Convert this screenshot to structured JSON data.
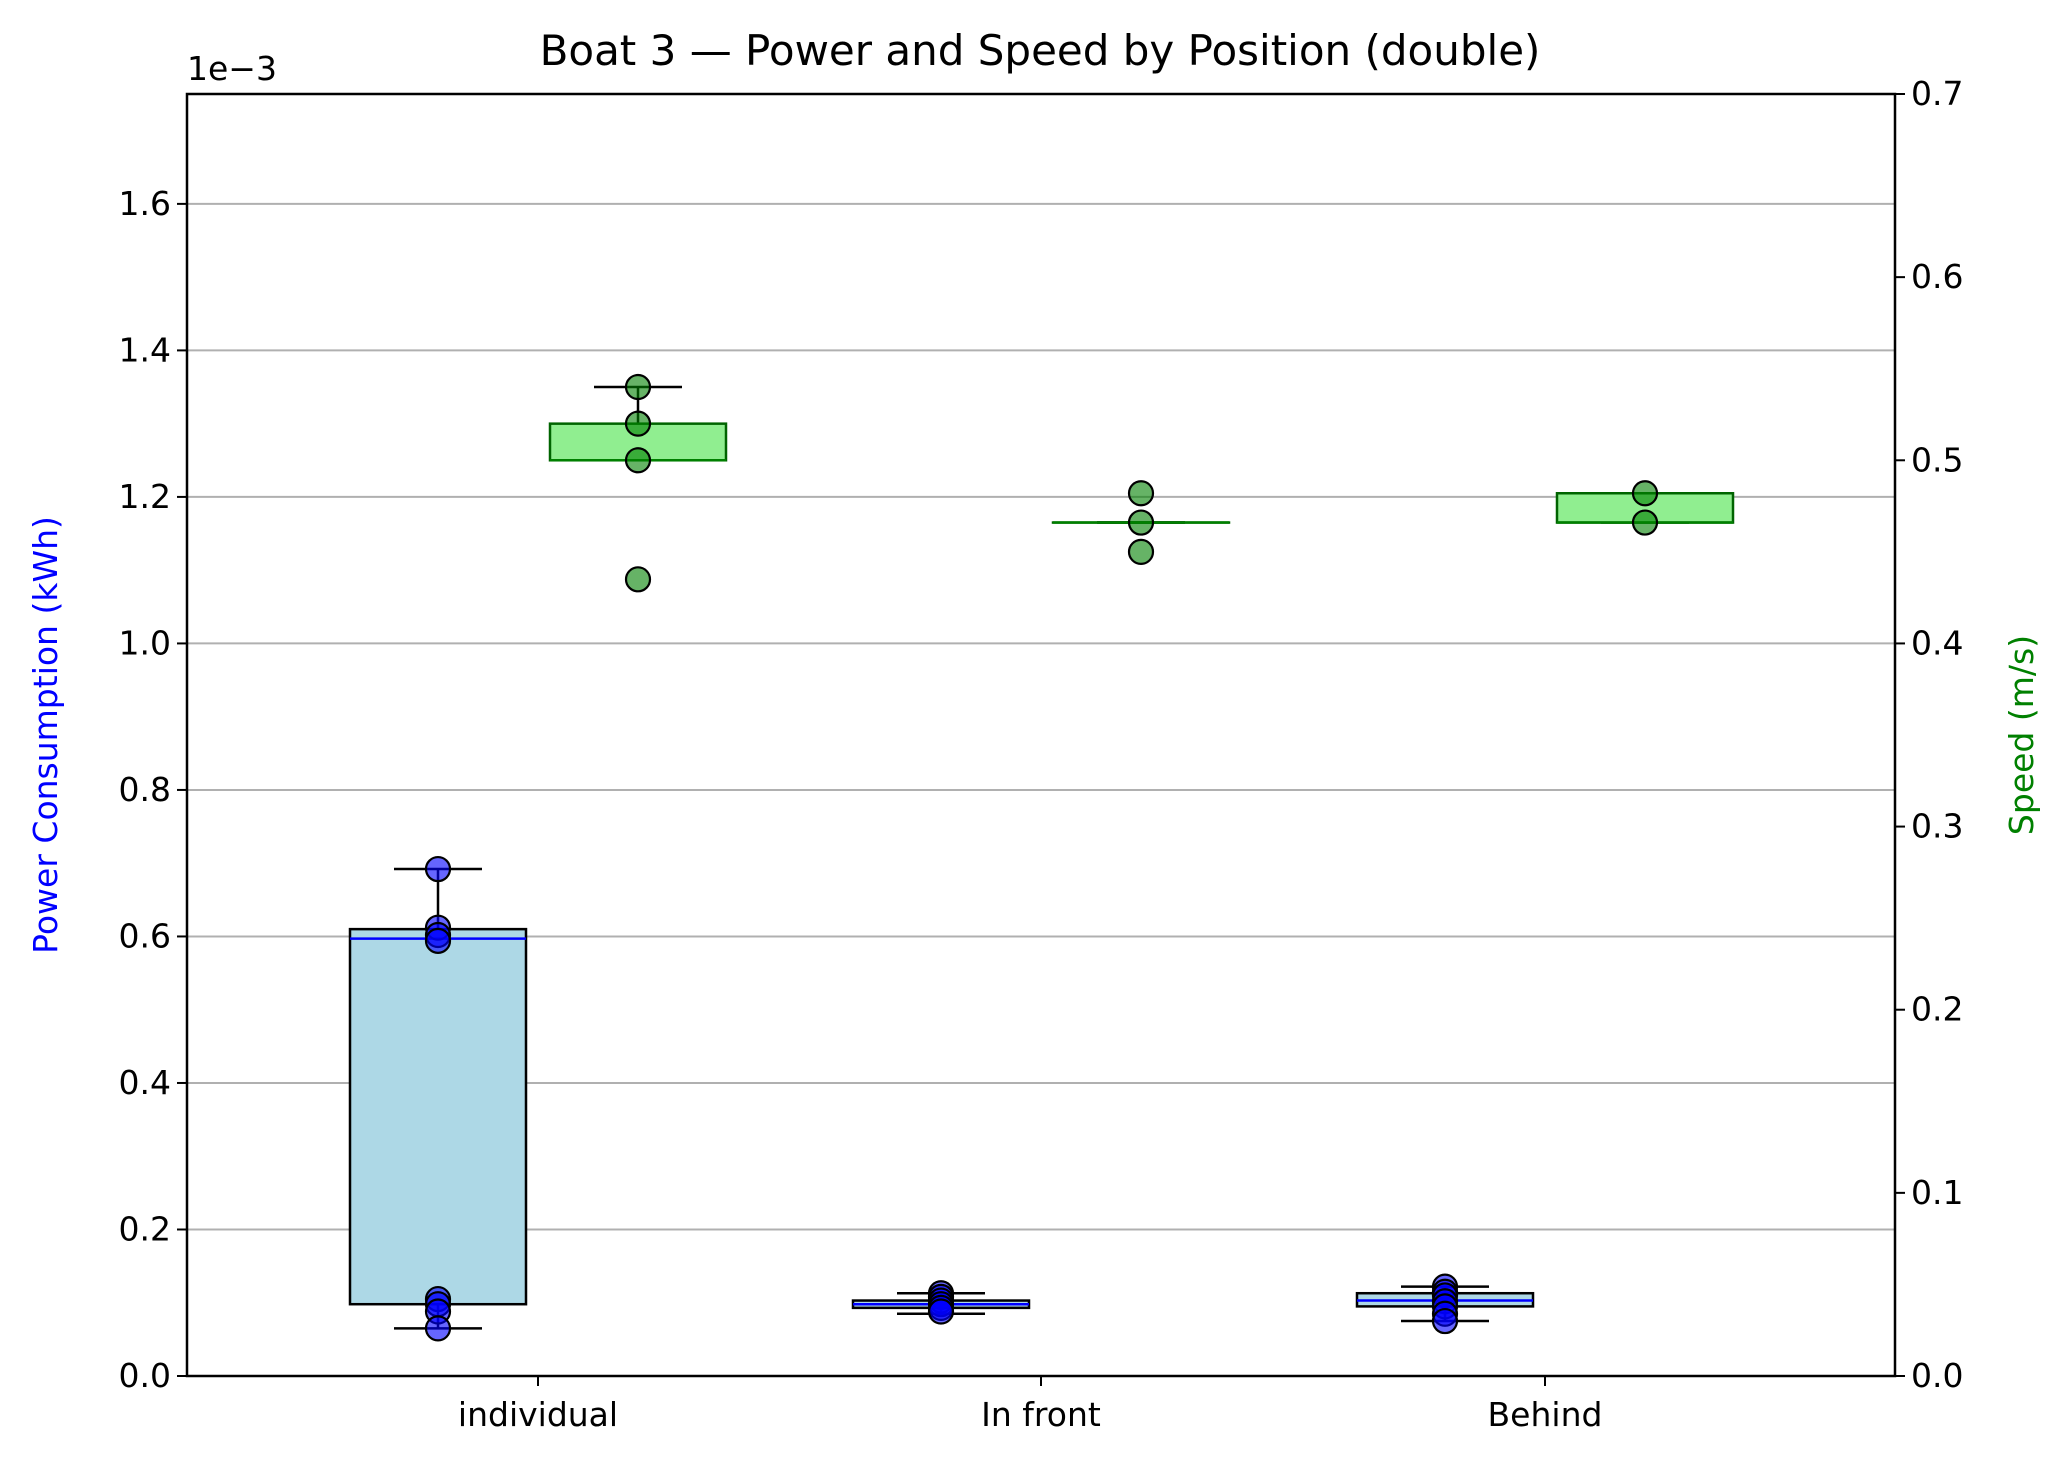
{
  "chart_data": {
    "type": "box",
    "title": "Boat 3 — Power and Speed by Position (double)",
    "xlabel": "",
    "categories": [
      "individual",
      "In front",
      "Behind"
    ],
    "left_axis": {
      "label": "Power Consumption (kWh)",
      "label_color": "#0000ff",
      "offset_text": "1e−3",
      "ylim": [
        0,
        1.75
      ],
      "ticks": [
        0.0,
        0.2,
        0.4,
        0.6,
        0.8,
        1.0,
        1.2,
        1.4,
        1.6
      ],
      "tick_labels": [
        "0.0",
        "0.2",
        "0.4",
        "0.6",
        "0.8",
        "1.0",
        "1.2",
        "1.4",
        "1.6"
      ],
      "grid": true
    },
    "right_axis": {
      "label": "Speed (m/s)",
      "label_color": "#008000",
      "ylim": [
        0,
        0.7
      ],
      "ticks": [
        0.0,
        0.1,
        0.2,
        0.3,
        0.4,
        0.5,
        0.6,
        0.7
      ],
      "tick_labels": [
        "0.0",
        "0.1",
        "0.2",
        "0.3",
        "0.4",
        "0.5",
        "0.6",
        "0.7"
      ]
    },
    "series": [
      {
        "name": "Power Consumption",
        "axis": "left",
        "unit_scale": "1e-3",
        "box_color": "#add8e6",
        "median_color": "#0000ff",
        "point_color": "#0000ff",
        "boxes": [
          {
            "category": "individual",
            "whislo": 0.065,
            "q1": 0.098,
            "med": 0.597,
            "q3": 0.61,
            "whishi": 0.692,
            "points": [
              0.692,
              0.612,
              0.602,
              0.594,
              0.105,
              0.098,
              0.088,
              0.065
            ],
            "fliers": []
          },
          {
            "category": "In front",
            "whislo": 0.085,
            "q1": 0.093,
            "med": 0.098,
            "q3": 0.103,
            "whishi": 0.113,
            "points": [
              0.113,
              0.108,
              0.103,
              0.098,
              0.093,
              0.088
            ],
            "fliers": []
          },
          {
            "category": "Behind",
            "whislo": 0.075,
            "q1": 0.095,
            "med": 0.103,
            "q3": 0.113,
            "whishi": 0.122,
            "points": [
              0.122,
              0.115,
              0.11,
              0.102,
              0.095,
              0.085,
              0.075
            ],
            "fliers": []
          }
        ]
      },
      {
        "name": "Speed",
        "axis": "right",
        "box_color": "#90ee90",
        "median_color": "#008000",
        "point_color": "#008000",
        "boxes": [
          {
            "category": "individual",
            "whislo": 0.5,
            "q1": 0.5,
            "med": 0.5,
            "q3": 0.52,
            "whishi": 0.54,
            "points": [
              0.54,
              0.52,
              0.5,
              0.435
            ],
            "fliers": [
              0.435
            ]
          },
          {
            "category": "In front",
            "whislo": 0.466,
            "q1": 0.466,
            "med": 0.466,
            "q3": 0.466,
            "whishi": 0.466,
            "points": [
              0.482,
              0.466,
              0.45
            ],
            "fliers": [
              0.482,
              0.45
            ]
          },
          {
            "category": "Behind",
            "whislo": 0.466,
            "q1": 0.466,
            "med": 0.466,
            "q3": 0.482,
            "whishi": 0.482,
            "points": [
              0.482,
              0.466
            ],
            "fliers": []
          }
        ]
      }
    ]
  }
}
